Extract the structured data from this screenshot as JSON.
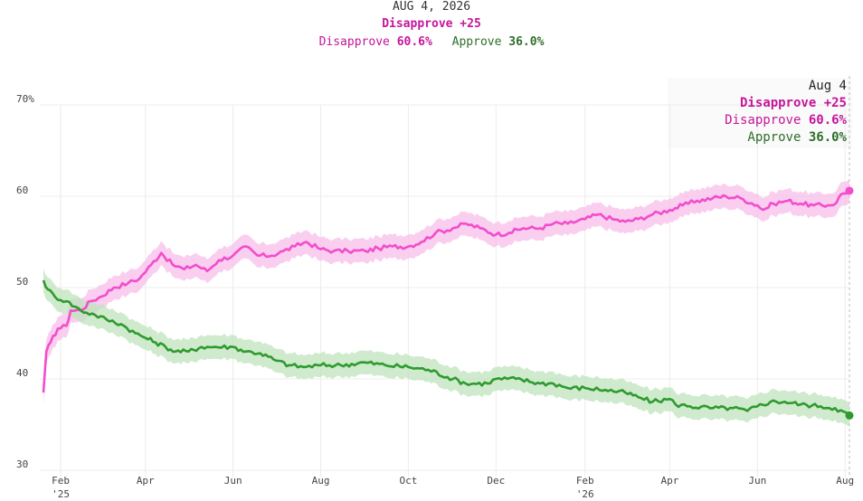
{
  "header": {
    "date": "AUG 4, 2026",
    "margin": "Disapprove +25",
    "disapprove_label": "Disapprove",
    "disapprove_value": "60.6%",
    "approve_label": "Approve",
    "approve_value": "36.0%"
  },
  "tooltip": {
    "date": "Aug 4",
    "margin": "Disapprove +25",
    "disapprove_label": "Disapprove",
    "disapprove_value": "60.6%",
    "approve_label": "Approve",
    "approve_value": "36.0%"
  },
  "colors": {
    "disapprove": "#f24dcc",
    "disapprove_band": "#f8bde9",
    "disapprove_text": "#c5159a",
    "approve": "#2e9b2e",
    "approve_band": "#bfe3bc",
    "approve_text": "#2f6e2a"
  },
  "chart_data": {
    "type": "line",
    "title": "",
    "xlabel": "",
    "ylabel": "",
    "ylim": [
      30,
      70
    ],
    "grid": true,
    "x_range": [
      "2025-01-20",
      "2026-08-04"
    ],
    "y_ticks": [
      {
        "value": 30,
        "label": "30"
      },
      {
        "value": 40,
        "label": "40"
      },
      {
        "value": 50,
        "label": "50"
      },
      {
        "value": 60,
        "label": "60"
      },
      {
        "value": 70,
        "label": "70%"
      }
    ],
    "x_ticks": [
      {
        "date": "2025-02-01",
        "label": "Feb",
        "year_label": "'25"
      },
      {
        "date": "2025-04-01",
        "label": "Apr"
      },
      {
        "date": "2025-06-01",
        "label": "Jun"
      },
      {
        "date": "2025-08-01",
        "label": "Aug"
      },
      {
        "date": "2025-10-01",
        "label": "Oct"
      },
      {
        "date": "2025-12-01",
        "label": "Dec"
      },
      {
        "date": "2026-02-01",
        "label": "Feb",
        "year_label": "'26"
      },
      {
        "date": "2026-04-01",
        "label": "Apr"
      },
      {
        "date": "2026-06-01",
        "label": "Jun"
      },
      {
        "date": "2026-08-01",
        "label": "Aug"
      }
    ],
    "series": [
      {
        "name": "Disapprove",
        "band": 1.3,
        "points": [
          [
            "2025-01-20",
            38.5
          ],
          [
            "2025-01-22",
            43.0
          ],
          [
            "2025-01-25",
            44.0
          ],
          [
            "2025-01-30",
            45.5
          ],
          [
            "2025-02-05",
            45.8
          ],
          [
            "2025-02-08",
            47.5
          ],
          [
            "2025-02-15",
            47.5
          ],
          [
            "2025-02-22",
            48.5
          ],
          [
            "2025-03-01",
            49.0
          ],
          [
            "2025-03-10",
            50.0
          ],
          [
            "2025-03-20",
            50.5
          ],
          [
            "2025-03-28",
            51.0
          ],
          [
            "2025-04-05",
            52.5
          ],
          [
            "2025-04-12",
            53.8
          ],
          [
            "2025-04-20",
            52.5
          ],
          [
            "2025-04-28",
            52.0
          ],
          [
            "2025-05-06",
            52.5
          ],
          [
            "2025-05-14",
            51.8
          ],
          [
            "2025-05-22",
            53.0
          ],
          [
            "2025-06-01",
            53.5
          ],
          [
            "2025-06-10",
            54.5
          ],
          [
            "2025-06-18",
            53.5
          ],
          [
            "2025-06-28",
            53.5
          ],
          [
            "2025-07-06",
            54.0
          ],
          [
            "2025-07-14",
            54.5
          ],
          [
            "2025-07-22",
            55.0
          ],
          [
            "2025-08-01",
            54.2
          ],
          [
            "2025-08-10",
            54.0
          ],
          [
            "2025-08-20",
            54.0
          ],
          [
            "2025-09-01",
            54.0
          ],
          [
            "2025-09-10",
            54.3
          ],
          [
            "2025-09-20",
            54.5
          ],
          [
            "2025-10-01",
            54.5
          ],
          [
            "2025-10-10",
            55.0
          ],
          [
            "2025-10-20",
            56.0
          ],
          [
            "2025-11-01",
            56.5
          ],
          [
            "2025-11-10",
            57.0
          ],
          [
            "2025-11-20",
            56.5
          ],
          [
            "2025-12-01",
            55.8
          ],
          [
            "2025-12-10",
            56.0
          ],
          [
            "2025-12-20",
            56.5
          ],
          [
            "2026-01-01",
            56.5
          ],
          [
            "2026-01-10",
            57.0
          ],
          [
            "2026-01-20",
            57.0
          ],
          [
            "2026-02-01",
            57.5
          ],
          [
            "2026-02-10",
            58.0
          ],
          [
            "2026-02-20",
            57.5
          ],
          [
            "2026-03-01",
            57.2
          ],
          [
            "2026-03-10",
            57.5
          ],
          [
            "2026-03-20",
            58.0
          ],
          [
            "2026-04-01",
            58.5
          ],
          [
            "2026-04-10",
            59.0
          ],
          [
            "2026-04-20",
            59.5
          ],
          [
            "2026-05-01",
            59.8
          ],
          [
            "2026-05-10",
            60.0
          ],
          [
            "2026-05-20",
            59.8
          ],
          [
            "2026-06-01",
            59.0
          ],
          [
            "2026-06-05",
            58.5
          ],
          [
            "2026-06-12",
            59.2
          ],
          [
            "2026-06-22",
            59.5
          ],
          [
            "2026-07-01",
            59.2
          ],
          [
            "2026-07-10",
            59.0
          ],
          [
            "2026-07-20",
            59.0
          ],
          [
            "2026-07-26",
            59.3
          ],
          [
            "2026-07-29",
            60.2
          ],
          [
            "2026-08-04",
            60.6
          ]
        ]
      },
      {
        "name": "Approve",
        "band": 1.3,
        "points": [
          [
            "2025-01-20",
            50.8
          ],
          [
            "2025-01-23",
            49.8
          ],
          [
            "2025-01-28",
            49.0
          ],
          [
            "2025-02-05",
            48.5
          ],
          [
            "2025-02-15",
            47.5
          ],
          [
            "2025-02-25",
            47.0
          ],
          [
            "2025-03-05",
            46.5
          ],
          [
            "2025-03-15",
            46.0
          ],
          [
            "2025-03-25",
            45.0
          ],
          [
            "2025-04-01",
            44.5
          ],
          [
            "2025-04-08",
            44.0
          ],
          [
            "2025-04-15",
            43.5
          ],
          [
            "2025-04-22",
            43.0
          ],
          [
            "2025-05-01",
            43.0
          ],
          [
            "2025-05-10",
            43.5
          ],
          [
            "2025-05-20",
            43.5
          ],
          [
            "2025-06-01",
            43.5
          ],
          [
            "2025-06-10",
            43.0
          ],
          [
            "2025-06-20",
            42.8
          ],
          [
            "2025-07-01",
            42.0
          ],
          [
            "2025-07-10",
            41.5
          ],
          [
            "2025-07-20",
            41.3
          ],
          [
            "2025-08-01",
            41.5
          ],
          [
            "2025-08-15",
            41.5
          ],
          [
            "2025-09-01",
            41.8
          ],
          [
            "2025-09-15",
            41.5
          ],
          [
            "2025-10-01",
            41.3
          ],
          [
            "2025-10-15",
            41.0
          ],
          [
            "2025-11-01",
            40.0
          ],
          [
            "2025-11-10",
            39.5
          ],
          [
            "2025-11-25",
            39.5
          ],
          [
            "2025-12-01",
            40.0
          ],
          [
            "2025-12-15",
            40.0
          ],
          [
            "2026-01-01",
            39.5
          ],
          [
            "2026-01-10",
            39.5
          ],
          [
            "2026-01-20",
            39.0
          ],
          [
            "2026-02-01",
            39.0
          ],
          [
            "2026-02-15",
            38.8
          ],
          [
            "2026-03-01",
            38.5
          ],
          [
            "2026-03-10",
            38.0
          ],
          [
            "2026-03-20",
            37.5
          ],
          [
            "2026-04-01",
            37.8
          ],
          [
            "2026-04-05",
            37.2
          ],
          [
            "2026-04-15",
            37.0
          ],
          [
            "2026-05-01",
            36.8
          ],
          [
            "2026-05-15",
            36.8
          ],
          [
            "2026-05-25",
            36.5
          ],
          [
            "2026-06-01",
            37.0
          ],
          [
            "2026-06-10",
            37.5
          ],
          [
            "2026-06-20",
            37.5
          ],
          [
            "2026-07-01",
            37.2
          ],
          [
            "2026-07-15",
            37.0
          ],
          [
            "2026-07-25",
            36.8
          ],
          [
            "2026-08-04",
            36.0
          ]
        ]
      }
    ]
  }
}
